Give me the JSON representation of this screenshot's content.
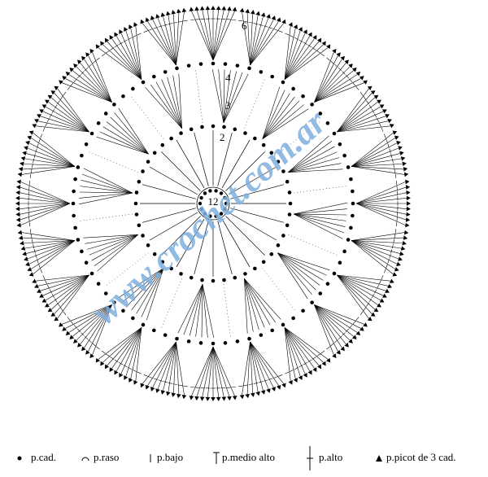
{
  "diagram": {
    "round_labels": [
      "12",
      "2",
      "3",
      "4",
      "6"
    ],
    "watermark": "www.crochet.com.ar"
  },
  "legend": [
    "p.cad.",
    "p.raso",
    "p.bajo",
    "p.medio alto",
    "p.alto",
    "p.picot de 3 cad."
  ]
}
